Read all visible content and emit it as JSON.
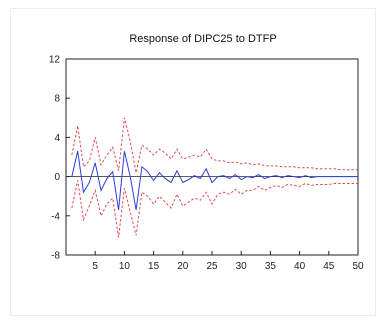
{
  "chart_data": {
    "type": "line",
    "title": "Response of DIPC25 to DTFP",
    "xlabel": "",
    "ylabel": "",
    "xlim": [
      0,
      50
    ],
    "ylim": [
      -8,
      12
    ],
    "yticks": [
      12,
      8,
      4,
      0,
      -4,
      -8
    ],
    "xticks": [
      5,
      10,
      15,
      20,
      25,
      30,
      35,
      40,
      45,
      50
    ],
    "grid": false,
    "legend": "none",
    "x": [
      1,
      2,
      3,
      4,
      5,
      6,
      7,
      8,
      9,
      10,
      11,
      12,
      13,
      14,
      15,
      16,
      17,
      18,
      19,
      20,
      21,
      22,
      23,
      24,
      25,
      26,
      27,
      28,
      29,
      30,
      31,
      32,
      33,
      34,
      35,
      36,
      37,
      38,
      39,
      40,
      41,
      42,
      43,
      44,
      45,
      46,
      47,
      48,
      49,
      50
    ],
    "series": [
      {
        "role": "response",
        "color": "#2b3fd6",
        "style": "solid",
        "values": [
          0,
          2.6,
          -1.6,
          -0.6,
          1.4,
          -1.4,
          -0.2,
          0.5,
          -3.4,
          2.6,
          0,
          -3.4,
          1.0,
          0.5,
          -0.4,
          0.4,
          -0.2,
          -0.6,
          0.6,
          -0.6,
          -0.3,
          0.1,
          -0.2,
          0.8,
          -0.6,
          0.0,
          0.1,
          -0.2,
          0.2,
          -0.3,
          0.0,
          -0.1,
          0.2,
          -0.2,
          0.0,
          0.1,
          -0.1,
          0.1,
          0.0,
          -0.1,
          0.1,
          -0.1,
          0.0,
          0.0,
          0.0,
          0.0,
          0.0,
          0.0,
          0.0,
          0.0
        ]
      },
      {
        "role": "upper band",
        "color": "#e34a4a",
        "style": "dashed",
        "values": [
          2.2,
          5.2,
          1.0,
          1.6,
          4.0,
          1.2,
          2.2,
          3.0,
          0.6,
          6.0,
          3.6,
          0.4,
          3.2,
          2.8,
          2.2,
          2.8,
          2.4,
          1.8,
          2.8,
          1.8,
          2.0,
          2.2,
          2.0,
          2.8,
          1.8,
          1.6,
          1.6,
          1.4,
          1.5,
          1.3,
          1.4,
          1.2,
          1.3,
          1.1,
          1.1,
          1.1,
          1.0,
          1.0,
          1.0,
          0.9,
          0.9,
          0.9,
          0.8,
          0.8,
          0.8,
          0.8,
          0.7,
          0.7,
          0.7,
          0.7
        ]
      },
      {
        "role": "lower band",
        "color": "#e34a4a",
        "style": "dashed",
        "values": [
          -3.2,
          -0.4,
          -4.4,
          -3.0,
          -1.4,
          -4.0,
          -2.8,
          -2.2,
          -6.2,
          -1.2,
          -3.6,
          -6.0,
          -1.6,
          -2.0,
          -2.8,
          -2.0,
          -2.6,
          -3.2,
          -1.8,
          -3.0,
          -2.6,
          -2.2,
          -2.4,
          -1.6,
          -2.8,
          -1.8,
          -1.6,
          -1.8,
          -1.3,
          -1.8,
          -1.4,
          -1.4,
          -1.0,
          -1.4,
          -1.1,
          -0.9,
          -1.1,
          -0.8,
          -0.9,
          -1.0,
          -0.7,
          -0.9,
          -0.8,
          -0.8,
          -0.8,
          -0.7,
          -0.7,
          -0.7,
          -0.7,
          -0.7
        ]
      }
    ]
  },
  "colors": {
    "frame": "#ececec",
    "axis": "#222222",
    "zero_line": "#222222"
  }
}
